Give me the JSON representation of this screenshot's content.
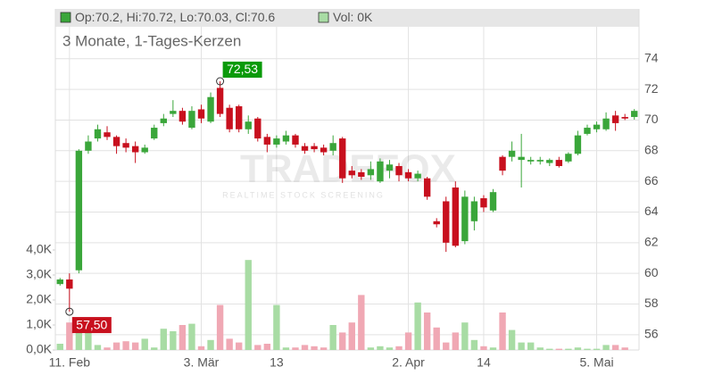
{
  "chart_data": {
    "type": "candlestick",
    "header_ohlc": "Op:70.2, Hi:70.72, Lo:70.03, Cl:70.6",
    "header_volume": "Vol: 0K",
    "title": "3 Monate, 1-Tages-Kerzen",
    "watermark": "TRADEFOX",
    "watermark_sub": "REALTIME STOCK SCREENING",
    "categories": [
      null,
      "11. Feb",
      null,
      null,
      null,
      null,
      null,
      null,
      null,
      null,
      null,
      null,
      null,
      null,
      null,
      "3. Mär",
      null,
      null,
      null,
      null,
      null,
      null,
      null,
      "13",
      null,
      null,
      null,
      null,
      null,
      null,
      null,
      null,
      null,
      null,
      null,
      null,
      null,
      "2. Apr",
      null,
      null,
      null,
      null,
      null,
      null,
      null,
      "14",
      null,
      null,
      null,
      null,
      null,
      null,
      null,
      null,
      null,
      null,
      null,
      "5. Mai",
      null,
      null,
      null,
      null
    ],
    "open": [
      59.3,
      59.6,
      60.2,
      68.0,
      68.8,
      69.2,
      68.9,
      68.5,
      68.3,
      67.9,
      68.8,
      69.8,
      70.4,
      70.6,
      69.5,
      70.7,
      69.9,
      72.1,
      70.8,
      70.9,
      69.4,
      70.1,
      68.9,
      68.4,
      68.6,
      69.0,
      68.3,
      68.3,
      68.2,
      68.0,
      68.8,
      66.7,
      66.6,
      66.4,
      66.0,
      66.7,
      67.0,
      66.6,
      66.2,
      66.2,
      63.4,
      64.7,
      65.6,
      62.1,
      63.4,
      64.9,
      64.1,
      67.6,
      67.6,
      67.4,
      67.3,
      67.3,
      67.2,
      67.4,
      67.3,
      67.8,
      69.1,
      69.4,
      69.4,
      70.3,
      70.2,
      70.2
    ],
    "high": [
      59.7,
      60.0,
      68.1,
      69.0,
      69.7,
      69.6,
      69.0,
      68.8,
      68.6,
      68.4,
      69.7,
      70.4,
      71.3,
      70.8,
      70.9,
      71.0,
      71.8,
      72.53,
      71.0,
      71.0,
      70.3,
      70.2,
      69.1,
      69.0,
      69.3,
      69.1,
      68.5,
      68.5,
      68.4,
      69.0,
      68.9,
      67.0,
      66.8,
      67.3,
      67.5,
      67.4,
      67.2,
      66.8,
      66.7,
      66.3,
      63.6,
      65.0,
      66.0,
      65.4,
      65.0,
      65.1,
      65.5,
      67.7,
      68.6,
      69.1,
      67.6,
      67.6,
      67.5,
      67.6,
      67.9,
      69.3,
      69.7,
      69.9,
      70.5,
      70.6,
      70.4,
      70.72
    ],
    "low": [
      59.2,
      57.5,
      60.0,
      67.8,
      68.6,
      68.7,
      67.8,
      67.9,
      67.2,
      67.8,
      68.7,
      69.6,
      70.2,
      69.7,
      69.4,
      69.8,
      69.8,
      70.2,
      69.2,
      69.2,
      69.1,
      68.6,
      67.9,
      68.2,
      68.4,
      68.2,
      67.8,
      67.9,
      67.7,
      67.7,
      65.9,
      66.2,
      66.1,
      66.1,
      65.9,
      66.2,
      66.0,
      66.0,
      66.0,
      64.8,
      63.0,
      61.4,
      61.7,
      61.9,
      62.8,
      64.0,
      64.0,
      66.4,
      67.3,
      65.6,
      67.1,
      67.1,
      67.0,
      66.9,
      67.2,
      67.7,
      69.0,
      69.2,
      69.3,
      69.3,
      70.0,
      70.03
    ],
    "close": [
      59.6,
      59.0,
      68.0,
      68.6,
      69.4,
      68.9,
      68.3,
      68.2,
      67.9,
      68.2,
      69.5,
      70.1,
      70.6,
      69.9,
      70.6,
      70.1,
      71.5,
      70.4,
      69.4,
      69.4,
      69.9,
      68.8,
      68.4,
      68.8,
      69.0,
      68.4,
      68.0,
      68.1,
      67.9,
      68.5,
      66.2,
      66.4,
      66.3,
      66.8,
      67.3,
      67.1,
      66.4,
      66.2,
      66.5,
      65.0,
      63.2,
      62.0,
      61.8,
      65.0,
      64.7,
      64.3,
      65.3,
      66.7,
      68.0,
      67.6,
      67.4,
      67.4,
      67.4,
      67.0,
      67.8,
      69.0,
      69.5,
      69.7,
      70.1,
      69.8,
      70.1,
      70.6
    ],
    "volume": [
      250,
      1100,
      700,
      1000,
      200,
      100,
      300,
      350,
      300,
      450,
      100,
      850,
      750,
      1000,
      1050,
      150,
      400,
      1800,
      450,
      300,
      3600,
      200,
      250,
      1800,
      100,
      100,
      200,
      150,
      100,
      1000,
      700,
      1100,
      2200,
      100,
      150,
      100,
      150,
      700,
      1900,
      1500,
      900,
      300,
      700,
      1100,
      400,
      150,
      100,
      1500,
      800,
      300,
      300,
      100,
      50,
      50,
      50,
      100,
      50,
      50,
      200,
      200,
      100,
      0
    ],
    "up_color": "#3aa63a",
    "down_color": "#c8101e",
    "up_volume_color": "#a8dca4",
    "down_volume_color": "#f0a8b4",
    "ylim": [
      55,
      77.25
    ],
    "yticks": [
      56,
      58,
      60,
      62,
      64,
      66,
      68,
      70,
      72,
      74
    ],
    "volume_ylim": [
      0,
      13640
    ],
    "volume_ticks": [
      {
        "value": 0,
        "label": "0,0K"
      },
      {
        "value": 1000,
        "label": "1,0K"
      },
      {
        "value": 2000,
        "label": "2,0K"
      },
      {
        "value": 3000,
        "label": "3,0K"
      },
      {
        "value": 4000,
        "label": "4,0K"
      }
    ],
    "annotations": [
      {
        "label": "72,53",
        "value": 72.53
      },
      {
        "label": "57,50",
        "value": 57.5
      }
    ],
    "grid": true
  }
}
